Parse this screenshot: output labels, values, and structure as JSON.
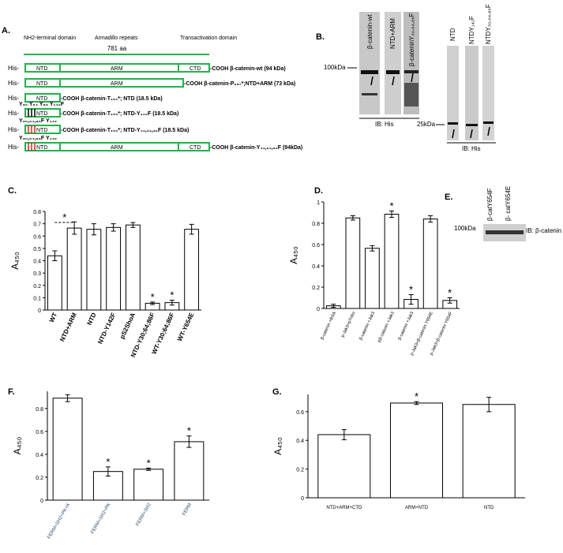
{
  "panel_a": {
    "letter": "A.",
    "headers": [
      "NH2-terminal domain",
      "Armadillo repeats",
      "Transactivation domain"
    ],
    "length": "781 aa",
    "rows": [
      {
        "prefix": "His-",
        "domains": [
          "NTD",
          "ARM",
          "CTD"
        ],
        "label": "-COOH β-catenin-wt (94 kDa)"
      },
      {
        "prefix": "His-",
        "domains": [
          "NTD",
          "ARM"
        ],
        "label": "-COOH  β-catenin-P₆₅₇*;NTD+ARM (73 kDa)"
      },
      {
        "prefix": "His-",
        "domains": [
          "NTD"
        ],
        "label": "-COOH  β-catenin-T₁₅₀*; NTD (18.5 kDa)"
      },
      {
        "prefix": "His-",
        "above": "Y₃₀ Y₆₄ Y₈₆   Y₁₄₂F",
        "domains": [
          "NTD"
        ],
        "label": "-COOH  β-catenin-T₁₅₀*; NTD-Y₁₄₂F (18.5 kDa)"
      },
      {
        "prefix": "His-",
        "above": "Y₃₀,₆₄,₈₆F   Y₁₄₂",
        "domains": [
          "NTD"
        ],
        "label": "-COOH  β-catenin-T₁₅₀*; NTD-Y₄₁,₆₁,₈₁F (18.5 kDa)"
      },
      {
        "prefix": "His-",
        "above": "Y₃₀,₆₄,₈₆F   Y₁₄₂",
        "domains": [
          "NTD",
          "ARM",
          "CTD"
        ],
        "label": "-COOH β-catenin-Y₄₁,₆₁,₈₁F (94kDa)"
      }
    ]
  },
  "panel_b": {
    "letter": "B.",
    "left_lanes": [
      "β-catenin-wt",
      "NTD+ARM",
      "β-cateninY₃₀,₆₄,₈₆F"
    ],
    "left_marker": "100kDa",
    "left_ib": "IB: His",
    "right_lanes": [
      "NTD",
      "NTDY₁₄₂F",
      "NTDY₃₀,₆₄,₈₆F"
    ],
    "right_marker": "25kDa",
    "right_ib": "IB: His"
  },
  "panel_e": {
    "letter": "E.",
    "lanes": [
      "β-catY654F",
      "β- catY654E"
    ],
    "marker": "100kDa",
    "ib": "IB: β-catenin"
  },
  "chart_data": [
    {
      "type": "bar",
      "panel": "C.",
      "y_label": "A₄₅₀",
      "color": "#ffffff",
      "bracket_label": "*",
      "categories": [
        "WT",
        "NTD+ARM",
        "NTD",
        "NTD-Y142F",
        "pS2ShoA",
        "NTD-Y30;64;86F",
        "WT-Y30;64;86F",
        "WT-Y654E"
      ],
      "values": [
        0.44,
        0.665,
        0.655,
        0.67,
        0.69,
        0.055,
        0.06,
        0.655
      ],
      "errors": [
        0.04,
        0.05,
        0.045,
        0.03,
        0.02,
        0.01,
        0.02,
        0.04
      ],
      "significance": [
        null,
        null,
        null,
        null,
        null,
        "*",
        "*",
        null
      ],
      "ylim": [
        0,
        0.8
      ],
      "yticks": [
        0,
        0.1,
        0.2,
        0.3,
        0.4,
        0.5,
        0.6,
        0.7,
        0.8
      ]
    },
    {
      "type": "bar",
      "panel": "D.",
      "y_label": "A₄₅₀",
      "color": "#ffffff",
      "categories": [
        "β-catenin +BSA",
        "p-Jak3+pTribn",
        "β-catenin +Jak3",
        "pβ-catenin +Jak3",
        "β-catenin +Jak3",
        "p-Jak3+β-catenin Y654E",
        "p-Jak3+β-catenin Y654F"
      ],
      "values": [
        0.025,
        0.85,
        0.565,
        0.885,
        0.085,
        0.84,
        0.075
      ],
      "errors": [
        0.015,
        0.02,
        0.025,
        0.03,
        0.045,
        0.03,
        0.025
      ],
      "significance": [
        null,
        null,
        null,
        "*",
        "*",
        null,
        "*"
      ],
      "ylim": [
        0,
        1
      ],
      "yticks": [
        0,
        0.2,
        0.4,
        0.6,
        0.8,
        1
      ]
    },
    {
      "type": "bar",
      "panel": "F.",
      "y_label": "A₄₅₀",
      "color": "#ffffff",
      "categories": [
        "FERM+SH2+PK+K",
        "FERM+SH2+PK",
        "FERM+SH2",
        "FERM"
      ],
      "values": [
        0.89,
        0.25,
        0.27,
        0.51
      ],
      "errors": [
        0.03,
        0.04,
        0.01,
        0.05
      ],
      "significance": [
        null,
        "*",
        "*",
        "*"
      ],
      "ylim": [
        0,
        0.95
      ],
      "yticks": [
        0,
        0.2,
        0.4,
        0.6,
        0.8
      ]
    },
    {
      "type": "bar",
      "panel": "G.",
      "y_label": "A₄₅₀",
      "color": "#ffffff",
      "categories": [
        "NTD+ARM+CTD",
        "ARM+NTD",
        "NTD"
      ],
      "values": [
        0.44,
        0.66,
        0.65
      ],
      "errors": [
        0.035,
        0.01,
        0.05
      ],
      "significance": [
        null,
        "*",
        null
      ],
      "ylim": [
        0,
        0.72
      ],
      "yticks": [
        0,
        0.2,
        0.4,
        0.6
      ]
    }
  ]
}
